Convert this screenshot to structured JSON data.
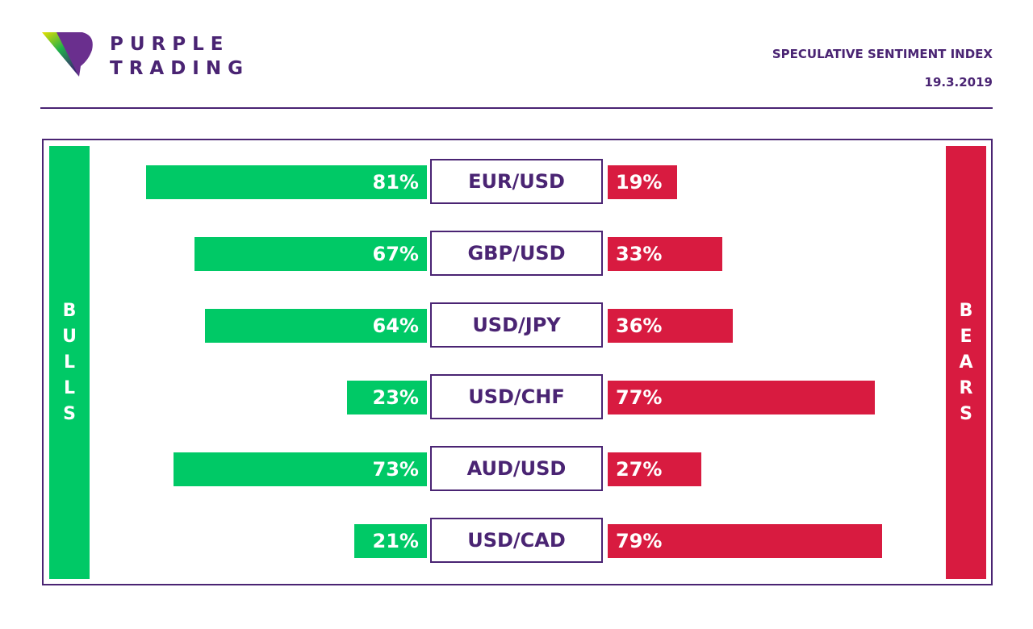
{
  "brand": {
    "line1": "PURPLE",
    "line2": "TRADING",
    "colors": {
      "purple": "#4a2473",
      "green": "#00c966",
      "red": "#d81b40"
    }
  },
  "header": {
    "title": "SPECULATIVE SENTIMENT INDEX",
    "date": "19.3.2019"
  },
  "chart_data": {
    "type": "bar",
    "title": "SPECULATIVE SENTIMENT INDEX",
    "left_label": "BULLS",
    "right_label": "BEARS",
    "categories": [
      "EUR/USD",
      "GBP/USD",
      "USD/JPY",
      "USD/CHF",
      "AUD/USD",
      "USD/CAD"
    ],
    "series": [
      {
        "name": "BULLS",
        "values": [
          81,
          67,
          64,
          23,
          73,
          21
        ],
        "labels": [
          "81%",
          "67%",
          "64%",
          "23%",
          "73%",
          "21%"
        ]
      },
      {
        "name": "BEARS",
        "values": [
          19,
          33,
          36,
          77,
          27,
          79
        ],
        "labels": [
          "19%",
          "33%",
          "36%",
          "77%",
          "27%",
          "79%"
        ]
      }
    ],
    "unit": "%",
    "ylim": [
      0,
      100
    ]
  }
}
